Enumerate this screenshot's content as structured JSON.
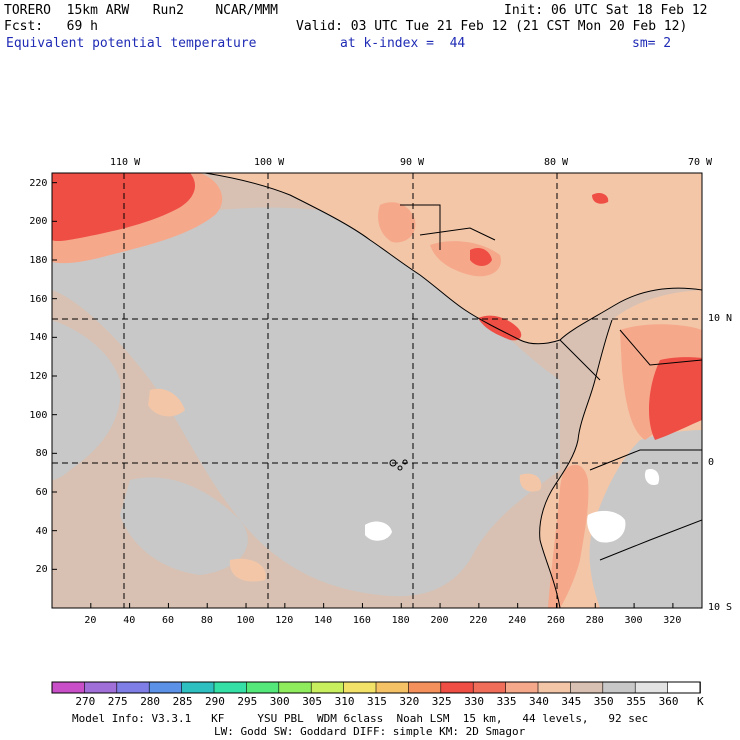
{
  "header": {
    "line1_left": "TORERO  15km ARW   Run2    NCAR/MMM",
    "line1_right": "Init: 06 UTC Sat 18 Feb 12",
    "line2_left": "Fcst:   69 h",
    "line2_right": "Valid: 03 UTC Tue 21 Feb 12 (21 CST Mon 20 Feb 12)",
    "field_name": "Equivalent potential temperature",
    "level": "at k-index =  44",
    "smoothing": "sm= 2"
  },
  "map": {
    "lon_labels": [
      "110 W",
      "100 W",
      "90 W",
      "80 W",
      "70 W"
    ],
    "lat_labels": [
      "10 N",
      "0",
      "10 S"
    ],
    "x_ticks": [
      "20",
      "40",
      "60",
      "80",
      "100",
      "120",
      "140",
      "160",
      "180",
      "200",
      "220",
      "240",
      "260",
      "280",
      "300",
      "320"
    ],
    "y_ticks": [
      "220",
      "200",
      "180",
      "160",
      "140",
      "120",
      "100",
      "80",
      "60",
      "40",
      "20"
    ],
    "x_grid_range": [
      0,
      335
    ],
    "y_grid_range": [
      0,
      225
    ]
  },
  "colorbar": {
    "levels": [
      "270",
      "275",
      "280",
      "285",
      "290",
      "295",
      "300",
      "305",
      "310",
      "315",
      "320",
      "325",
      "330",
      "335",
      "340",
      "345",
      "350",
      "355",
      "360"
    ],
    "unit": "K",
    "colors": [
      "#c94fc9",
      "#a070d8",
      "#7f7ee6",
      "#5b92e8",
      "#2ec0c0",
      "#35e0a6",
      "#54e87a",
      "#8fec5d",
      "#c8ef5d",
      "#f3e268",
      "#f6c266",
      "#f4905c",
      "#ef4e45",
      "#f06d5a",
      "#f6a88b",
      "#f3c6a8",
      "#d8c1b2",
      "#c8c8c8",
      "#e3e3e3",
      "#ffffff"
    ]
  },
  "footer": {
    "line1": "Model Info: V3.3.1   KF     YSU PBL  WDM 6class  Noah LSM  15 km,   44 levels,   92 sec",
    "line2": "LW: Godd SW: Goddard DIFF: simple KM: 2D Smagor"
  }
}
